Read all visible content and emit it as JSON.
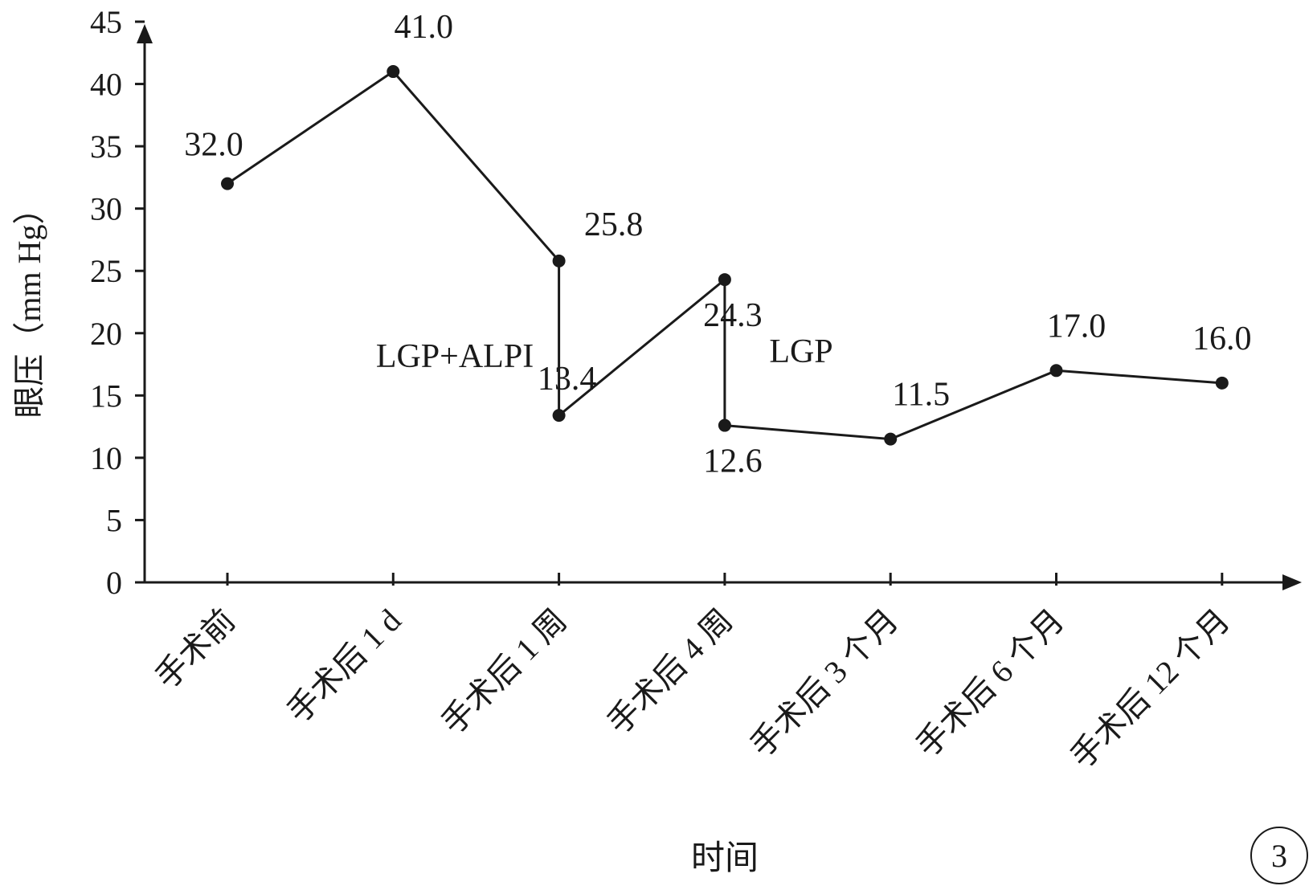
{
  "chart_data": {
    "type": "line",
    "xlabel": "时间",
    "ylabel": "眼压（mm Hg）",
    "ylim": [
      0,
      45
    ],
    "yticks": [
      "0",
      "5",
      "10",
      "15",
      "20",
      "25",
      "30",
      "35",
      "40",
      "45"
    ],
    "categories": [
      "手术前",
      "手术后 1 d",
      "手术后 1 周",
      "手术后 4 周",
      "手术后 3 个月",
      "手术后 6 个月",
      "手术后 12 个月"
    ],
    "points": [
      {
        "category": "手术前",
        "value": 32.0,
        "label": "32.0"
      },
      {
        "category": "手术后 1 d",
        "value": 41.0,
        "label": "41.0"
      },
      {
        "category": "手术后 1 周",
        "value": 25.8,
        "label": "25.8"
      },
      {
        "category": "手术后 1 周",
        "value": 13.4,
        "label": "13.4"
      },
      {
        "category": "手术后 4 周",
        "value": 24.3,
        "label": "24.3"
      },
      {
        "category": "手术后 4 周",
        "value": 12.6,
        "label": "12.6"
      },
      {
        "category": "手术后 3 个月",
        "value": 11.5,
        "label": "11.5"
      },
      {
        "category": "手术后 6 个月",
        "value": 17.0,
        "label": "17.0"
      },
      {
        "category": "手术后 12 个月",
        "value": 16.0,
        "label": "16.0"
      }
    ],
    "annotations": [
      "LGP+ALPI",
      "LGP"
    ],
    "grid": false,
    "line_color": "#1a1a1a"
  },
  "panel_label": "3"
}
